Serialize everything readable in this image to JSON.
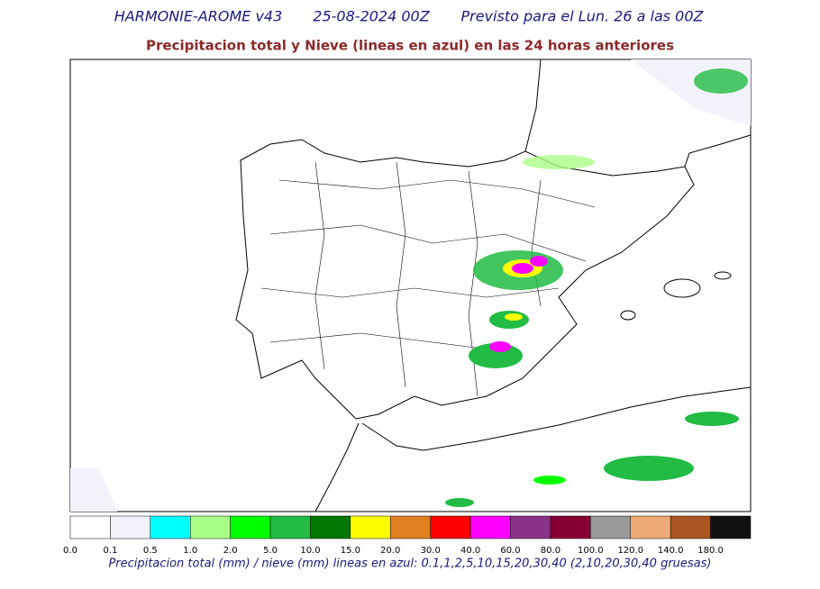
{
  "header": {
    "model": "HARMONIE-AROME v43",
    "run": "25-08-2024 00Z",
    "forecast": "Previsto para el Lun. 26 a las 00Z",
    "subtitle": "Precipitacion total y Nieve (lineas en azul) en las 24 horas anteriores"
  },
  "colorbar": {
    "colors": [
      "#ffffff",
      "#f2f3fa",
      "#00ffff",
      "#aaff88",
      "#00ff00",
      "#22bb44",
      "#007700",
      "#ffff00",
      "#e08020",
      "#ff0000",
      "#ff00ff",
      "#883388",
      "#880033",
      "#999999",
      "#eeaa77",
      "#aa5522",
      "#111111"
    ],
    "labels": [
      "0.0",
      "0.1",
      "0.5",
      "1.0",
      "2.0",
      "5.0",
      "10.0",
      "15.0",
      "20.0",
      "30.0",
      "40.0",
      "60.0",
      "80.0",
      "100.0",
      "120.0",
      "140.0",
      "180.0"
    ]
  },
  "caption": "Precipitacion total (mm) / nieve (mm) lineas en azul: 0.1,1,2,5,10,15,20,30,40  (2,10,20,30,40 gruesas)"
}
